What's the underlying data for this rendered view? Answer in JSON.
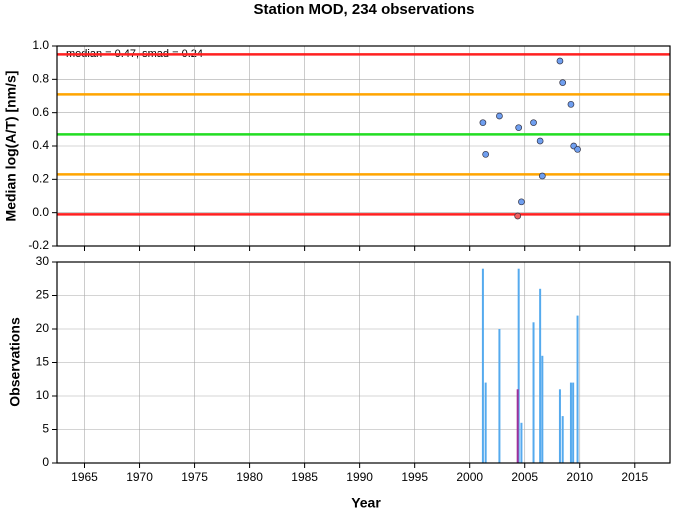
{
  "chart_data": [
    {
      "type": "scatter",
      "title": "Station MOD, 234 observations",
      "ylabel": "Median log(A/T) [nm/s]",
      "annotation": "median = 0.47, smad = 0.24",
      "xlim": [
        1962.5,
        2018.2
      ],
      "xticks": [
        1965,
        1970,
        1975,
        1980,
        1985,
        1990,
        1995,
        2000,
        2005,
        2010,
        2015
      ],
      "ylim": [
        -0.2,
        1.0
      ],
      "yticks": [
        {
          "value": -0.2,
          "label": "-0.2"
        },
        {
          "value": 0,
          "label": "0.0"
        },
        0.2,
        0.4,
        0.6,
        0.8,
        {
          "value": 1,
          "label": "1.0"
        }
      ],
      "grid": true,
      "hlines": [
        {
          "value": 0.95,
          "color": "#ff2020"
        },
        {
          "value": 0.71,
          "color": "#ffa500"
        },
        {
          "value": 0.47,
          "color": "#22dd22"
        },
        {
          "value": 0.23,
          "color": "#ffa500"
        },
        {
          "value": -0.01,
          "color": "#ff2020"
        }
      ],
      "series": [
        {
          "color": "#6f9ff0",
          "x": [
            2001.2,
            2001.45,
            2002.7,
            2004.45,
            2004.7,
            2005.8,
            2006.4,
            2006.6,
            2008.2,
            2008.45,
            2009.2,
            2009.45,
            2009.8
          ],
          "values": [
            0.54,
            0.35,
            0.58,
            0.51,
            0.065,
            0.54,
            0.43,
            0.22,
            0.91,
            0.78,
            0.65,
            0.4,
            0.38
          ]
        },
        {
          "color": "#f06060",
          "x": [
            2004.36
          ],
          "values": [
            -0.02
          ]
        }
      ]
    },
    {
      "type": "bar",
      "ylabel": "Observations",
      "xlabel": "Year",
      "xlim": [
        1962.5,
        2018.2
      ],
      "xticks": [
        1965,
        1970,
        1975,
        1980,
        1985,
        1990,
        1995,
        2000,
        2005,
        2010,
        2015
      ],
      "ylim": [
        0,
        30
      ],
      "yticks": [
        0,
        5,
        10,
        15,
        20,
        25,
        30
      ],
      "grid": true,
      "series": [
        {
          "color": "#55aaee",
          "x": [
            2001.2,
            2001.45,
            2002.7,
            2004.45,
            2004.7,
            2005.8,
            2006.4,
            2006.6,
            2008.2,
            2008.45,
            2009.2,
            2009.4,
            2009.8
          ],
          "values": [
            29,
            12,
            20,
            29,
            6,
            21,
            26,
            16,
            11,
            7,
            12,
            12,
            22
          ]
        },
        {
          "color": "#a0309a",
          "x": [
            2004.36
          ],
          "values": [
            11
          ]
        }
      ]
    }
  ]
}
